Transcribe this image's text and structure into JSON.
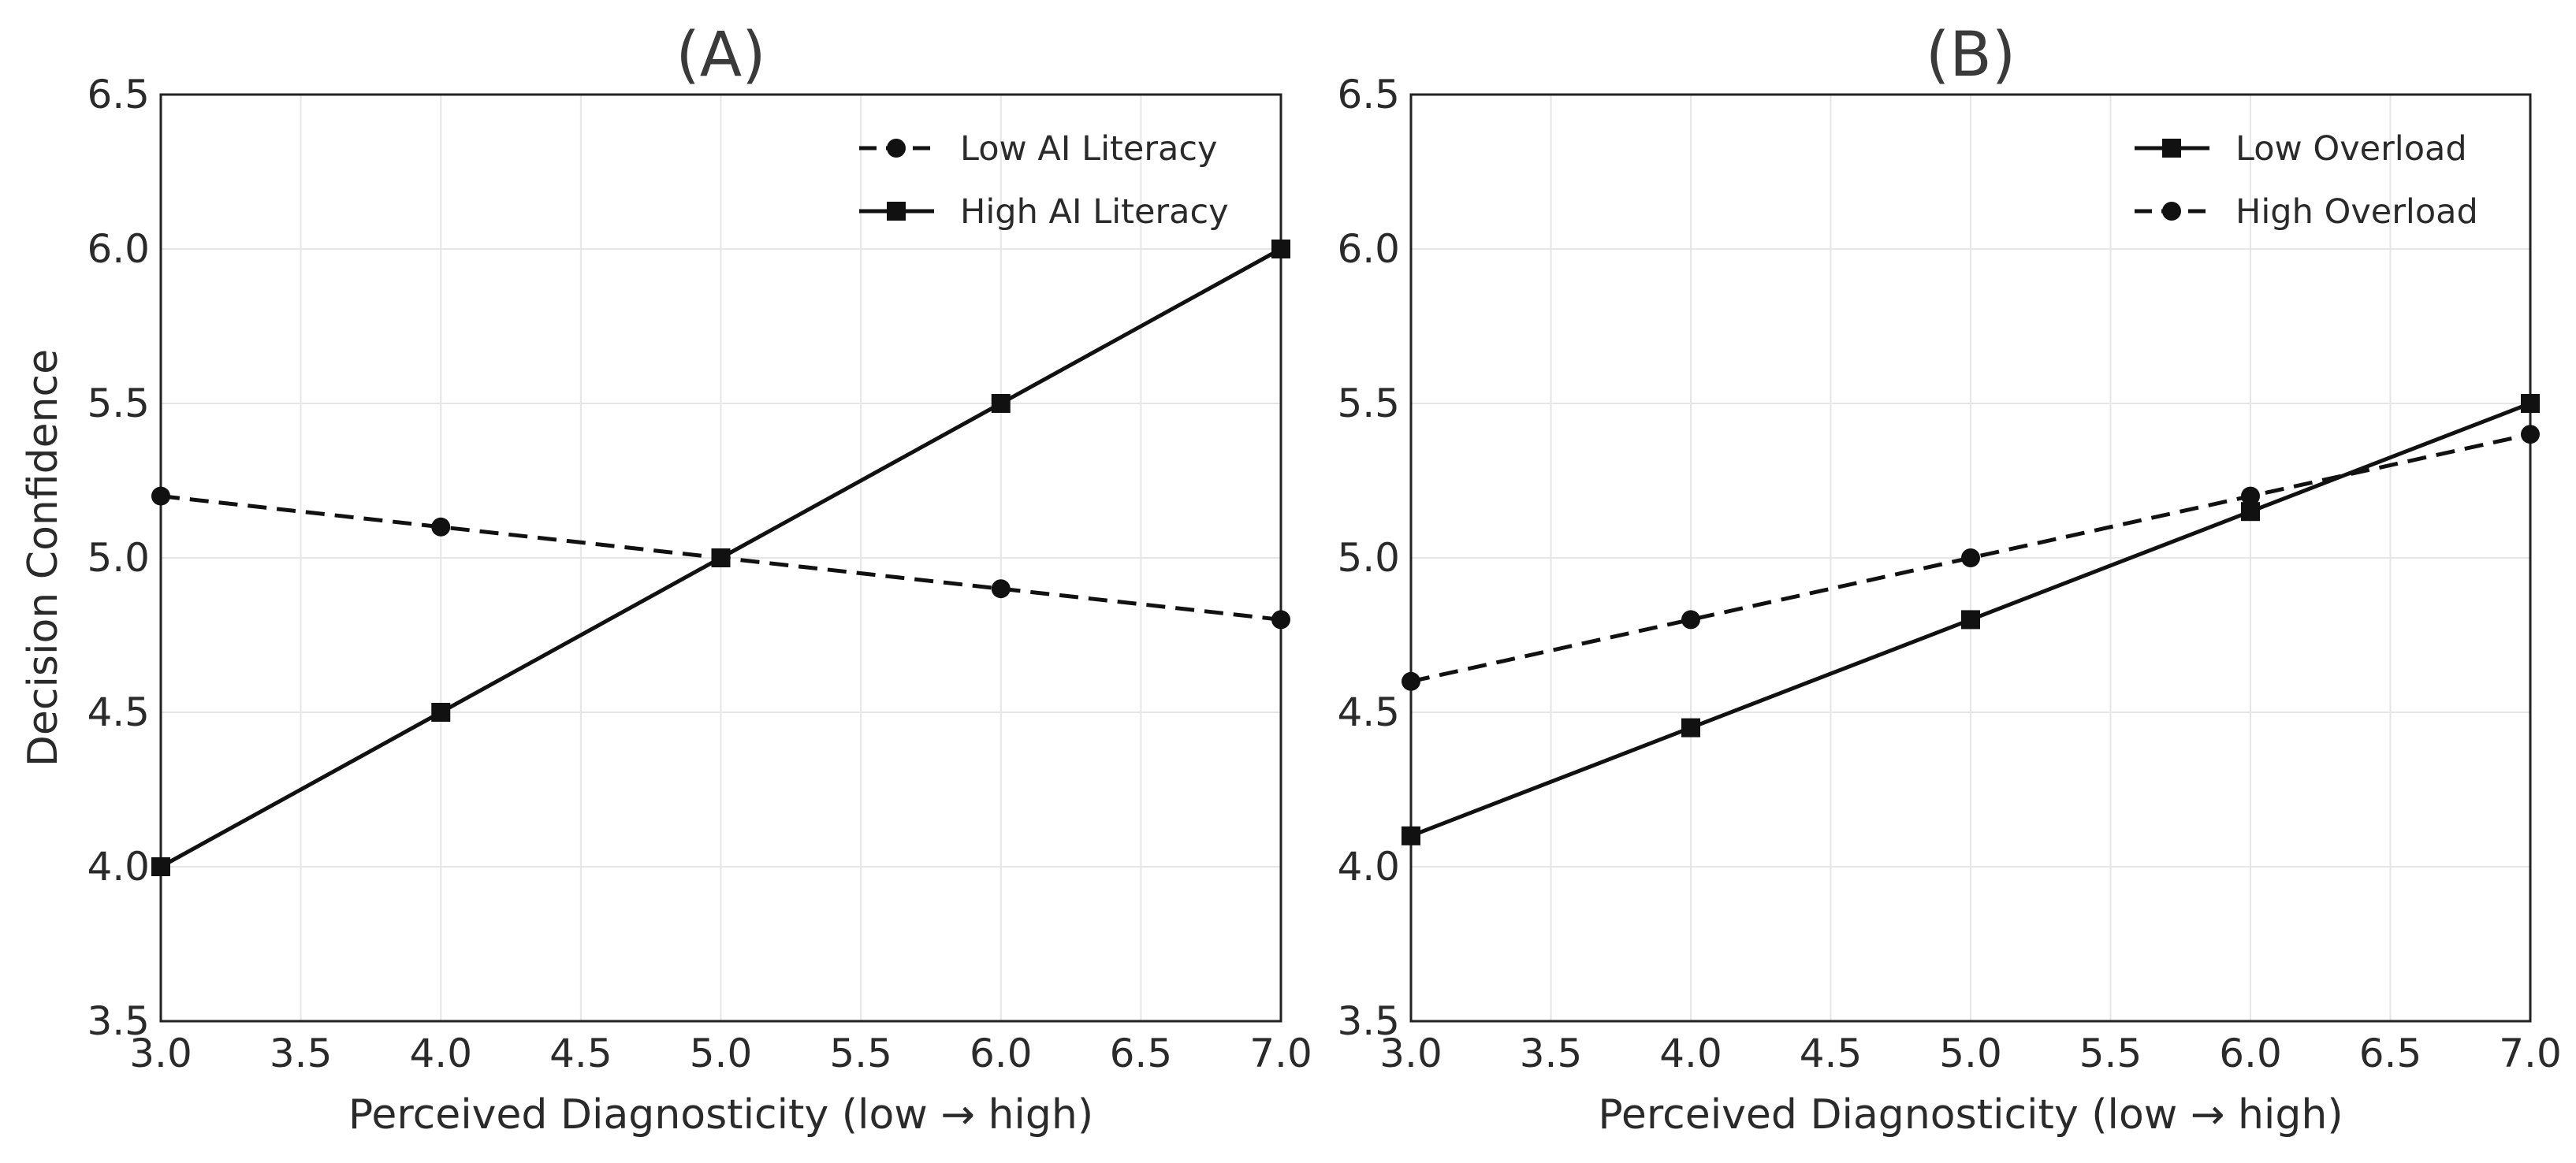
{
  "chart_data": [
    {
      "type": "line",
      "title": "(A)",
      "xlabel": "Perceived Diagnosticity (low → high)",
      "ylabel": "Decision Confidence",
      "xlim": [
        3.0,
        7.0
      ],
      "ylim": [
        3.5,
        6.5
      ],
      "xticks": [
        "3.0",
        "3.5",
        "4.0",
        "4.5",
        "5.0",
        "5.5",
        "6.0",
        "6.5",
        "7.0"
      ],
      "yticks": [
        "3.5",
        "4.0",
        "4.5",
        "5.0",
        "5.5",
        "6.0",
        "6.5"
      ],
      "grid": true,
      "legend_position": "top-right",
      "series": [
        {
          "name": "Low AI Literacy",
          "style": "dashed",
          "marker": "circle",
          "x": [
            3,
            4,
            5,
            6,
            7
          ],
          "y": [
            5.2,
            5.1,
            5.0,
            4.9,
            4.8
          ]
        },
        {
          "name": "High AI Literacy",
          "style": "solid",
          "marker": "square",
          "x": [
            3,
            4,
            5,
            6,
            7
          ],
          "y": [
            4.0,
            4.5,
            5.0,
            5.5,
            6.0
          ]
        }
      ]
    },
    {
      "type": "line",
      "title": "(B)",
      "xlabel": "Perceived Diagnosticity (low → high)",
      "ylabel": "",
      "xlim": [
        3.0,
        7.0
      ],
      "ylim": [
        3.5,
        6.5
      ],
      "xticks": [
        "3.0",
        "3.5",
        "4.0",
        "4.5",
        "5.0",
        "5.5",
        "6.0",
        "6.5",
        "7.0"
      ],
      "yticks": [
        "3.5",
        "4.0",
        "4.5",
        "5.0",
        "5.5",
        "6.0",
        "6.5"
      ],
      "grid": true,
      "legend_position": "top-right",
      "series": [
        {
          "name": "Low Overload",
          "style": "solid",
          "marker": "square",
          "x": [
            3,
            4,
            5,
            6,
            7
          ],
          "y": [
            4.1,
            4.45,
            4.8,
            5.15,
            5.5
          ]
        },
        {
          "name": "High Overload",
          "style": "dashed",
          "marker": "circle",
          "x": [
            3,
            4,
            5,
            6,
            7
          ],
          "y": [
            4.6,
            4.8,
            5.0,
            5.2,
            5.4
          ]
        }
      ]
    }
  ],
  "colors": {
    "line": "#111111",
    "grid": "#e6e6e6",
    "text": "#2a2a2a"
  }
}
